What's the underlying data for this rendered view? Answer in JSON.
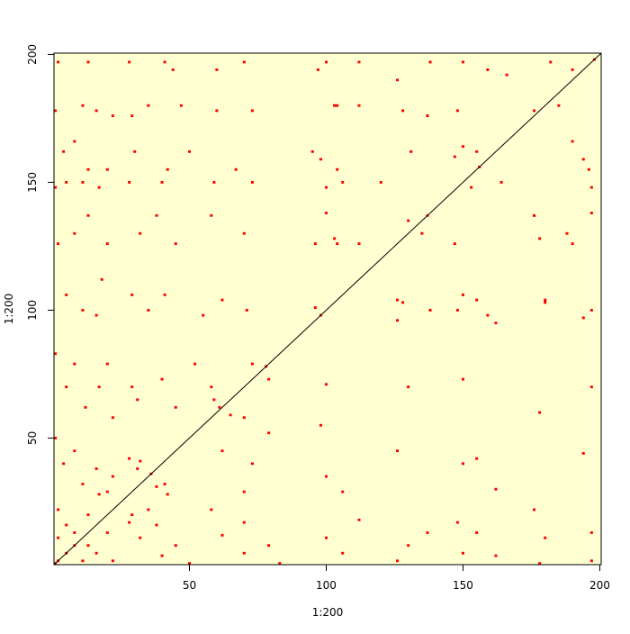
{
  "chart_data": {
    "type": "image",
    "x_label": "1:200",
    "y_label": "1:200",
    "xlim": [
      0.5,
      200.5
    ],
    "ylim": [
      0.5,
      200.5
    ],
    "xticks": [
      50,
      100,
      150,
      200
    ],
    "yticks": [
      50,
      100,
      150,
      200
    ],
    "background": "#ffffd2",
    "color": "#ff0000",
    "cells": [
      [
        2,
        197
      ],
      [
        13,
        197
      ],
      [
        28,
        197
      ],
      [
        41,
        197
      ],
      [
        44,
        194
      ],
      [
        60,
        194
      ],
      [
        70,
        197
      ],
      [
        97,
        194
      ],
      [
        112,
        197
      ],
      [
        126,
        190
      ],
      [
        138,
        197
      ],
      [
        150,
        197
      ],
      [
        159,
        194
      ],
      [
        166,
        192
      ],
      [
        182,
        197
      ],
      [
        190,
        194
      ],
      [
        1,
        178
      ],
      [
        11,
        180
      ],
      [
        16,
        178
      ],
      [
        22,
        176
      ],
      [
        29,
        176
      ],
      [
        35,
        180
      ],
      [
        47,
        180
      ],
      [
        60,
        178
      ],
      [
        73,
        178
      ],
      [
        103,
        180
      ],
      [
        112,
        180
      ],
      [
        128,
        178
      ],
      [
        137,
        176
      ],
      [
        148,
        178
      ],
      [
        176,
        178
      ],
      [
        185,
        180
      ],
      [
        4,
        162
      ],
      [
        8,
        166
      ],
      [
        13,
        155
      ],
      [
        20,
        155
      ],
      [
        30,
        162
      ],
      [
        42,
        155
      ],
      [
        50,
        162
      ],
      [
        67,
        155
      ],
      [
        95,
        162
      ],
      [
        104,
        155
      ],
      [
        131,
        162
      ],
      [
        147,
        160
      ],
      [
        155,
        162
      ],
      [
        190,
        166
      ],
      [
        196,
        155
      ],
      [
        1,
        148
      ],
      [
        5,
        150
      ],
      [
        11,
        150
      ],
      [
        17,
        148
      ],
      [
        28,
        150
      ],
      [
        40,
        150
      ],
      [
        59,
        150
      ],
      [
        73,
        150
      ],
      [
        100,
        148
      ],
      [
        120,
        150
      ],
      [
        153,
        148
      ],
      [
        164,
        150
      ],
      [
        197,
        148
      ],
      [
        2,
        126
      ],
      [
        8,
        130
      ],
      [
        13,
        137
      ],
      [
        20,
        126
      ],
      [
        32,
        130
      ],
      [
        38,
        137
      ],
      [
        45,
        126
      ],
      [
        58,
        137
      ],
      [
        70,
        130
      ],
      [
        96,
        126
      ],
      [
        103,
        128
      ],
      [
        112,
        126
      ],
      [
        135,
        130
      ],
      [
        147,
        126
      ],
      [
        176,
        137
      ],
      [
        188,
        130
      ],
      [
        5,
        106
      ],
      [
        11,
        100
      ],
      [
        16,
        98
      ],
      [
        18,
        112
      ],
      [
        29,
        106
      ],
      [
        35,
        100
      ],
      [
        41,
        106
      ],
      [
        55,
        98
      ],
      [
        62,
        104
      ],
      [
        71,
        100
      ],
      [
        96,
        101
      ],
      [
        126,
        104
      ],
      [
        138,
        100
      ],
      [
        150,
        106
      ],
      [
        159,
        98
      ],
      [
        180,
        104
      ],
      [
        197,
        100
      ],
      [
        1,
        83
      ],
      [
        5,
        70
      ],
      [
        8,
        79
      ],
      [
        12,
        62
      ],
      [
        17,
        70
      ],
      [
        20,
        79
      ],
      [
        22,
        58
      ],
      [
        29,
        70
      ],
      [
        31,
        65
      ],
      [
        40,
        73
      ],
      [
        45,
        62
      ],
      [
        52,
        79
      ],
      [
        58,
        70
      ],
      [
        61,
        62
      ],
      [
        65,
        59
      ],
      [
        73,
        79
      ],
      [
        1,
        50
      ],
      [
        4,
        40
      ],
      [
        8,
        45
      ],
      [
        11,
        32
      ],
      [
        16,
        38
      ],
      [
        20,
        29
      ],
      [
        2,
        22
      ],
      [
        5,
        16
      ],
      [
        8,
        13
      ],
      [
        11,
        2
      ],
      [
        13,
        20
      ],
      [
        17,
        28
      ],
      [
        22,
        35
      ],
      [
        28,
        42
      ],
      [
        31,
        38
      ],
      [
        32,
        41
      ],
      [
        197,
        2
      ],
      [
        197,
        13
      ],
      [
        194,
        44
      ],
      [
        197,
        70
      ],
      [
        194,
        97
      ],
      [
        190,
        126
      ],
      [
        197,
        138
      ],
      [
        194,
        159
      ],
      [
        178,
        1
      ],
      [
        180,
        11
      ],
      [
        176,
        22
      ],
      [
        178,
        60
      ],
      [
        180,
        103
      ],
      [
        178,
        128
      ],
      [
        176,
        137
      ],
      [
        162,
        4
      ],
      [
        155,
        13
      ],
      [
        162,
        30
      ],
      [
        155,
        42
      ],
      [
        162,
        95
      ],
      [
        155,
        104
      ],
      [
        150,
        5
      ],
      [
        148,
        17
      ],
      [
        150,
        40
      ],
      [
        150,
        73
      ],
      [
        148,
        100
      ],
      [
        150,
        164
      ],
      [
        126,
        2
      ],
      [
        130,
        8
      ],
      [
        137,
        13
      ],
      [
        126,
        45
      ],
      [
        130,
        70
      ],
      [
        126,
        96
      ],
      [
        128,
        103
      ],
      [
        130,
        135
      ],
      [
        137,
        176
      ],
      [
        106,
        5
      ],
      [
        100,
        11
      ],
      [
        112,
        18
      ],
      [
        106,
        29
      ],
      [
        100,
        35
      ],
      [
        98,
        55
      ],
      [
        100,
        71
      ],
      [
        104,
        126
      ],
      [
        100,
        138
      ],
      [
        106,
        150
      ],
      [
        98,
        159
      ],
      [
        104,
        180
      ],
      [
        100,
        197
      ],
      [
        83,
        1
      ],
      [
        70,
        5
      ],
      [
        79,
        8
      ],
      [
        62,
        12
      ],
      [
        70,
        17
      ],
      [
        58,
        22
      ],
      [
        70,
        29
      ],
      [
        73,
        40
      ],
      [
        62,
        45
      ],
      [
        79,
        52
      ],
      [
        70,
        58
      ],
      [
        59,
        65
      ],
      [
        79,
        73
      ],
      [
        50,
        1
      ],
      [
        40,
        4
      ],
      [
        45,
        8
      ],
      [
        32,
        11
      ],
      [
        38,
        16
      ],
      [
        29,
        20
      ],
      [
        22,
        2
      ],
      [
        16,
        5
      ],
      [
        13,
        8
      ],
      [
        2,
        11
      ],
      [
        20,
        13
      ],
      [
        28,
        17
      ],
      [
        35,
        22
      ],
      [
        42,
        28
      ],
      [
        38,
        31
      ],
      [
        41,
        32
      ],
      [
        1,
        1
      ],
      [
        2,
        2
      ],
      [
        5,
        5
      ],
      [
        8,
        8
      ],
      [
        36,
        36
      ],
      [
        78,
        78
      ],
      [
        98,
        98
      ],
      [
        137,
        137
      ],
      [
        156,
        156
      ],
      [
        198,
        198
      ]
    ],
    "line": {
      "x": [
        0.5,
        200.5
      ],
      "y": [
        0.5,
        200.5
      ],
      "color": "#000000"
    }
  }
}
